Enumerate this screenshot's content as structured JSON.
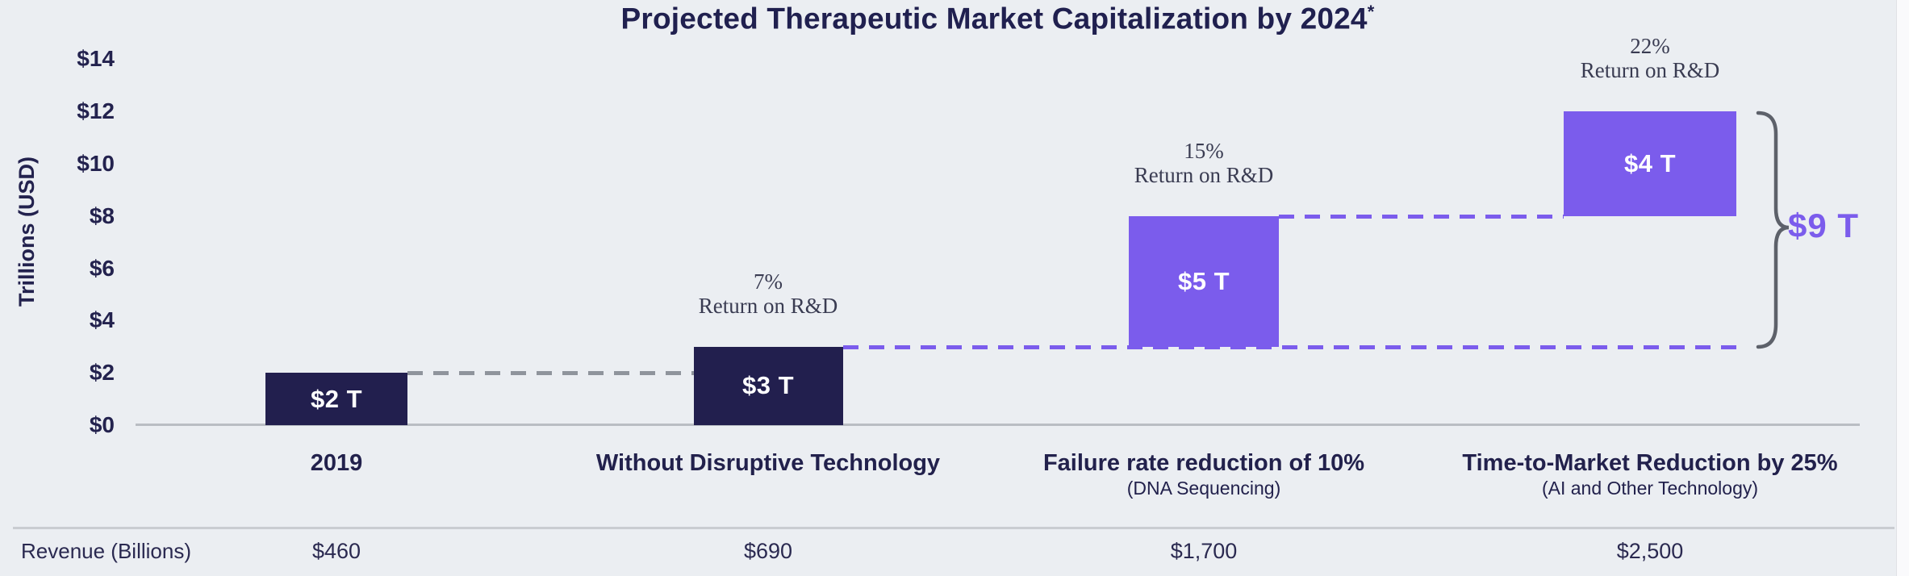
{
  "title": {
    "text": "Projected Therapeutic Market Capitalization by 2024",
    "superscript": "*"
  },
  "colors": {
    "navy": "#221f4e",
    "purple": "#7b5cec",
    "gray_dash": "#8f949c",
    "background": "#ebeef2",
    "axis_line": "#b9bdc3",
    "brace": "#5d616a",
    "bar_label": "#ffffff"
  },
  "chart_data": {
    "type": "bar",
    "subtype": "waterfall",
    "title": "Projected Therapeutic Market Capitalization by 2024*",
    "ylabel": "Trillions (USD)",
    "ylim": [
      0,
      14
    ],
    "ytick_step": 2,
    "ytick_labels": [
      "$0",
      "$2",
      "$4",
      "$6",
      "$8",
      "$10",
      "$12",
      "$14"
    ],
    "grid": false,
    "legend": "none",
    "bars": [
      {
        "category": "2019",
        "subcategory": "",
        "base": 0,
        "top": 2,
        "value": 2,
        "value_label": "$2 T",
        "color": "navy",
        "annotation_pct": "",
        "annotation_text": "",
        "revenue_billions": "$460"
      },
      {
        "category": "Without Disruptive Technology",
        "subcategory": "",
        "base": 0,
        "top": 3,
        "value": 3,
        "value_label": "$3 T",
        "color": "navy",
        "annotation_pct": "7%",
        "annotation_text": "Return on R&D",
        "revenue_billions": "$690"
      },
      {
        "category": "Failure rate reduction of 10%",
        "subcategory": "(DNA Sequencing)",
        "base": 3,
        "top": 8,
        "value": 5,
        "value_label": "$5 T",
        "color": "purple",
        "annotation_pct": "15%",
        "annotation_text": "Return on R&D",
        "revenue_billions": "$1,700"
      },
      {
        "category": "Time-to-Market Reduction by 25%",
        "subcategory": "(AI and Other Technology)",
        "base": 8,
        "top": 12,
        "value": 4,
        "value_label": "$4 T",
        "color": "purple",
        "annotation_pct": "22%",
        "annotation_text": "Return on R&D",
        "revenue_billions": "$2,500"
      }
    ],
    "connectors": [
      {
        "from_bar": 0,
        "to_bar": 1,
        "level": 2,
        "color": "gray_dash"
      },
      {
        "from_bar": 1,
        "to_bar": -1,
        "level": 3,
        "color": "purple"
      },
      {
        "from_bar": 2,
        "to_bar": 3,
        "level": 8,
        "color": "purple"
      }
    ],
    "brace": {
      "from_level": 3,
      "to_level": 12,
      "label": "$9 T"
    }
  },
  "footer": {
    "revenue_label": "Revenue (Billions)",
    "revenue_values": [
      "$460",
      "$690",
      "$1,700",
      "$2,500"
    ]
  }
}
